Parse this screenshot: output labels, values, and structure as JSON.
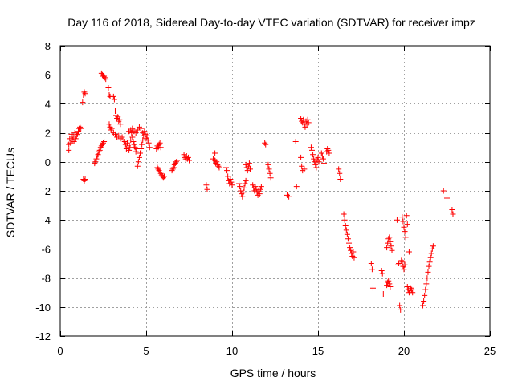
{
  "chart_data": {
    "type": "scatter",
    "title": "Day 116 of 2018, Sidereal Day-to-day VTEC variation (SDTVAR) for receiver impz",
    "xlabel": "GPS time / hours",
    "ylabel": "SDTVAR / TECUs",
    "xlim": [
      0,
      25
    ],
    "ylim": [
      -12,
      8
    ],
    "xticks": [
      0,
      5,
      10,
      15,
      20,
      25
    ],
    "yticks": [
      -12,
      -10,
      -8,
      -6,
      -4,
      -2,
      0,
      2,
      4,
      6,
      8
    ],
    "grid": true,
    "marker": "plus",
    "color": "#ff0000",
    "series": [
      {
        "name": "SDTVAR",
        "points": [
          [
            0.5,
            0.8
          ],
          [
            0.5,
            1.2
          ],
          [
            0.55,
            1.6
          ],
          [
            0.6,
            1.3
          ],
          [
            0.65,
            1.9
          ],
          [
            0.7,
            1.5
          ],
          [
            0.75,
            1.7
          ],
          [
            0.8,
            1.4
          ],
          [
            0.85,
            2.0
          ],
          [
            0.9,
            1.6
          ],
          [
            0.95,
            1.8
          ],
          [
            1.0,
            1.9
          ],
          [
            1.05,
            2.1
          ],
          [
            1.1,
            2.3
          ],
          [
            1.15,
            2.4
          ],
          [
            1.2,
            2.3
          ],
          [
            1.3,
            4.1
          ],
          [
            1.35,
            4.6
          ],
          [
            1.4,
            4.8
          ],
          [
            1.45,
            4.7
          ],
          [
            1.35,
            -1.2
          ],
          [
            1.4,
            -1.3
          ],
          [
            1.45,
            -1.2
          ],
          [
            2.0,
            -0.1
          ],
          [
            2.05,
            0.0
          ],
          [
            2.1,
            0.2
          ],
          [
            2.15,
            0.4
          ],
          [
            2.2,
            0.5
          ],
          [
            2.25,
            0.7
          ],
          [
            2.3,
            0.8
          ],
          [
            2.35,
            1.0
          ],
          [
            2.4,
            1.1
          ],
          [
            2.45,
            1.2
          ],
          [
            2.5,
            1.3
          ],
          [
            2.55,
            1.4
          ],
          [
            2.4,
            6.1
          ],
          [
            2.45,
            6.0
          ],
          [
            2.5,
            5.9
          ],
          [
            2.55,
            5.9
          ],
          [
            2.6,
            5.8
          ],
          [
            2.65,
            5.7
          ],
          [
            2.8,
            5.1
          ],
          [
            2.85,
            4.6
          ],
          [
            2.9,
            4.5
          ],
          [
            2.85,
            2.6
          ],
          [
            2.9,
            2.4
          ],
          [
            2.95,
            2.2
          ],
          [
            3.0,
            2.3
          ],
          [
            3.1,
            4.5
          ],
          [
            3.15,
            4.3
          ],
          [
            3.2,
            3.5
          ],
          [
            3.25,
            3.2
          ],
          [
            3.3,
            3.0
          ],
          [
            3.35,
            3.1
          ],
          [
            3.4,
            2.8
          ],
          [
            3.45,
            2.9
          ],
          [
            3.5,
            2.6
          ],
          [
            3.1,
            2.0
          ],
          [
            3.2,
            1.9
          ],
          [
            3.3,
            1.7
          ],
          [
            3.4,
            1.8
          ],
          [
            3.5,
            1.6
          ],
          [
            3.6,
            1.7
          ],
          [
            3.7,
            1.5
          ],
          [
            3.75,
            1.4
          ],
          [
            3.8,
            1.2
          ],
          [
            3.85,
            0.9
          ],
          [
            3.9,
            1.3
          ],
          [
            3.95,
            1.1
          ],
          [
            4.0,
            0.8
          ],
          [
            4.05,
            1.0
          ],
          [
            4.1,
            1.5
          ],
          [
            4.15,
            2.0
          ],
          [
            4.2,
            1.7
          ],
          [
            4.25,
            1.4
          ],
          [
            4.3,
            1.2
          ],
          [
            4.35,
            1.0
          ],
          [
            4.4,
            0.7
          ],
          [
            4.45,
            0.9
          ],
          [
            4.0,
            2.1
          ],
          [
            4.1,
            2.2
          ],
          [
            4.2,
            2.3
          ],
          [
            4.3,
            2.1
          ],
          [
            4.4,
            2.0
          ],
          [
            4.5,
            -0.3
          ],
          [
            4.55,
            0.0
          ],
          [
            4.6,
            0.3
          ],
          [
            4.65,
            0.6
          ],
          [
            4.7,
            0.9
          ],
          [
            4.75,
            1.2
          ],
          [
            4.8,
            1.5
          ],
          [
            4.85,
            1.8
          ],
          [
            4.9,
            2.1
          ],
          [
            4.95,
            1.9
          ],
          [
            5.0,
            1.6
          ],
          [
            5.05,
            1.8
          ],
          [
            5.1,
            1.5
          ],
          [
            5.15,
            1.3
          ],
          [
            5.2,
            1.0
          ],
          [
            4.5,
            2.2
          ],
          [
            4.6,
            2.4
          ],
          [
            4.7,
            2.3
          ],
          [
            4.8,
            2.0
          ],
          [
            5.6,
            0.9
          ],
          [
            5.65,
            1.1
          ],
          [
            5.7,
            1.0
          ],
          [
            5.75,
            1.2
          ],
          [
            5.8,
            1.3
          ],
          [
            5.85,
            1.0
          ],
          [
            5.65,
            -0.4
          ],
          [
            5.7,
            -0.5
          ],
          [
            5.75,
            -0.6
          ],
          [
            5.8,
            -0.7
          ],
          [
            5.85,
            -0.8
          ],
          [
            5.9,
            -0.9
          ],
          [
            5.95,
            -1.0
          ],
          [
            6.0,
            -1.1
          ],
          [
            6.05,
            -1.0
          ],
          [
            6.5,
            -0.6
          ],
          [
            6.55,
            -0.5
          ],
          [
            6.6,
            -0.4
          ],
          [
            6.65,
            -0.2
          ],
          [
            6.7,
            -0.1
          ],
          [
            6.75,
            0.0
          ],
          [
            6.8,
            0.1
          ],
          [
            7.2,
            0.5
          ],
          [
            7.25,
            0.3
          ],
          [
            7.3,
            0.2
          ],
          [
            7.35,
            0.4
          ],
          [
            7.4,
            0.2
          ],
          [
            7.45,
            0.3
          ],
          [
            7.5,
            0.1
          ],
          [
            8.5,
            -1.6
          ],
          [
            8.55,
            -1.9
          ],
          [
            8.9,
            0.2
          ],
          [
            8.95,
            0.4
          ],
          [
            9.0,
            0.6
          ],
          [
            9.0,
            0.1
          ],
          [
            9.05,
            -0.1
          ],
          [
            9.1,
            0.0
          ],
          [
            9.15,
            -0.2
          ],
          [
            9.2,
            -0.3
          ],
          [
            9.25,
            -0.4
          ],
          [
            9.65,
            -0.4
          ],
          [
            9.7,
            -0.6
          ],
          [
            9.75,
            -1.0
          ],
          [
            9.8,
            -1.3
          ],
          [
            9.85,
            -1.5
          ],
          [
            9.9,
            -1.2
          ],
          [
            9.95,
            -1.4
          ],
          [
            10.0,
            -1.6
          ],
          [
            10.4,
            -1.5
          ],
          [
            10.45,
            -1.7
          ],
          [
            10.5,
            -2.0
          ],
          [
            10.55,
            -2.2
          ],
          [
            10.6,
            -2.4
          ],
          [
            10.65,
            -2.1
          ],
          [
            10.7,
            -1.8
          ],
          [
            10.75,
            -1.5
          ],
          [
            10.8,
            -1.3
          ],
          [
            10.8,
            -0.2
          ],
          [
            10.85,
            -0.4
          ],
          [
            10.9,
            -0.6
          ],
          [
            10.95,
            -0.3
          ],
          [
            11.0,
            -0.1
          ],
          [
            11.05,
            -0.5
          ],
          [
            11.2,
            -1.6
          ],
          [
            11.25,
            -1.8
          ],
          [
            11.3,
            -2.0
          ],
          [
            11.35,
            -1.7
          ],
          [
            11.4,
            -1.9
          ],
          [
            11.45,
            -2.1
          ],
          [
            11.5,
            -2.3
          ],
          [
            11.55,
            -2.0
          ],
          [
            11.6,
            -2.2
          ],
          [
            11.65,
            -1.9
          ],
          [
            11.7,
            -1.7
          ],
          [
            11.9,
            1.3
          ],
          [
            11.95,
            1.2
          ],
          [
            12.1,
            -0.2
          ],
          [
            12.15,
            -0.5
          ],
          [
            12.2,
            -0.8
          ],
          [
            12.25,
            -1.1
          ],
          [
            13.2,
            -2.3
          ],
          [
            13.3,
            -2.4
          ],
          [
            13.7,
            1.4
          ],
          [
            13.75,
            -1.7
          ],
          [
            14.0,
            0.3
          ],
          [
            14.05,
            -0.3
          ],
          [
            14.1,
            -0.6
          ],
          [
            14.2,
            -0.5
          ],
          [
            14.0,
            3.0
          ],
          [
            14.05,
            2.8
          ],
          [
            14.1,
            2.7
          ],
          [
            14.15,
            2.9
          ],
          [
            14.2,
            2.6
          ],
          [
            14.25,
            2.4
          ],
          [
            14.3,
            2.8
          ],
          [
            14.35,
            2.6
          ],
          [
            14.4,
            2.9
          ],
          [
            14.45,
            2.7
          ],
          [
            14.6,
            1.0
          ],
          [
            14.65,
            0.8
          ],
          [
            14.7,
            0.5
          ],
          [
            14.75,
            0.2
          ],
          [
            14.8,
            0.0
          ],
          [
            14.85,
            -0.2
          ],
          [
            14.9,
            -0.4
          ],
          [
            14.95,
            0.1
          ],
          [
            15.0,
            0.3
          ],
          [
            15.05,
            0.0
          ],
          [
            15.2,
            0.6
          ],
          [
            15.25,
            0.4
          ],
          [
            15.3,
            0.2
          ],
          [
            15.35,
            -0.1
          ],
          [
            15.5,
            0.7
          ],
          [
            15.55,
            0.9
          ],
          [
            15.6,
            0.8
          ],
          [
            15.65,
            0.6
          ],
          [
            16.2,
            -0.5
          ],
          [
            16.25,
            -0.8
          ],
          [
            16.3,
            -1.2
          ],
          [
            16.5,
            -3.6
          ],
          [
            16.55,
            -4.0
          ],
          [
            16.6,
            -4.4
          ],
          [
            16.65,
            -4.7
          ],
          [
            16.7,
            -5.0
          ],
          [
            16.75,
            -5.3
          ],
          [
            16.8,
            -5.6
          ],
          [
            16.85,
            -5.9
          ],
          [
            16.9,
            -6.1
          ],
          [
            16.95,
            -6.3
          ],
          [
            17.0,
            -6.5
          ],
          [
            17.05,
            -6.2
          ],
          [
            17.1,
            -6.6
          ],
          [
            18.1,
            -7.0
          ],
          [
            18.15,
            -7.4
          ],
          [
            18.2,
            -8.7
          ],
          [
            18.7,
            -7.5
          ],
          [
            18.75,
            -7.7
          ],
          [
            18.8,
            -9.1
          ],
          [
            19.0,
            -5.9
          ],
          [
            19.05,
            -5.6
          ],
          [
            19.1,
            -5.3
          ],
          [
            19.15,
            -5.2
          ],
          [
            19.2,
            -5.5
          ],
          [
            19.25,
            -5.8
          ],
          [
            19.3,
            -6.1
          ],
          [
            19.0,
            -8.5
          ],
          [
            19.05,
            -8.3
          ],
          [
            19.1,
            -8.2
          ],
          [
            19.15,
            -8.4
          ],
          [
            19.2,
            -8.6
          ],
          [
            19.6,
            -4.0
          ],
          [
            19.65,
            -7.1
          ],
          [
            19.7,
            -7.0
          ],
          [
            19.75,
            -9.9
          ],
          [
            19.8,
            -10.2
          ],
          [
            19.85,
            -6.8
          ],
          [
            19.9,
            -3.8
          ],
          [
            19.95,
            -4.1
          ],
          [
            20.0,
            -4.5
          ],
          [
            20.05,
            -4.8
          ],
          [
            20.1,
            -5.2
          ],
          [
            20.15,
            -3.7
          ],
          [
            20.2,
            -4.3
          ],
          [
            19.9,
            -6.9
          ],
          [
            19.95,
            -7.2
          ],
          [
            20.0,
            -7.4
          ],
          [
            20.05,
            -7.1
          ],
          [
            20.2,
            -8.6
          ],
          [
            20.25,
            -8.8
          ],
          [
            20.3,
            -9.0
          ],
          [
            20.35,
            -8.9
          ],
          [
            20.4,
            -8.7
          ],
          [
            20.45,
            -8.8
          ],
          [
            20.5,
            -9.0
          ],
          [
            20.3,
            -6.2
          ],
          [
            21.1,
            -9.9
          ],
          [
            21.15,
            -9.6
          ],
          [
            21.2,
            -9.2
          ],
          [
            21.25,
            -8.8
          ],
          [
            21.3,
            -8.4
          ],
          [
            21.35,
            -8.0
          ],
          [
            21.4,
            -7.6
          ],
          [
            21.45,
            -7.2
          ],
          [
            21.5,
            -6.9
          ],
          [
            21.55,
            -6.6
          ],
          [
            21.6,
            -6.3
          ],
          [
            21.65,
            -6.0
          ],
          [
            21.7,
            -5.8
          ],
          [
            22.3,
            -2.0
          ],
          [
            22.5,
            -2.5
          ],
          [
            22.8,
            -3.3
          ],
          [
            22.85,
            -3.6
          ]
        ]
      }
    ]
  }
}
